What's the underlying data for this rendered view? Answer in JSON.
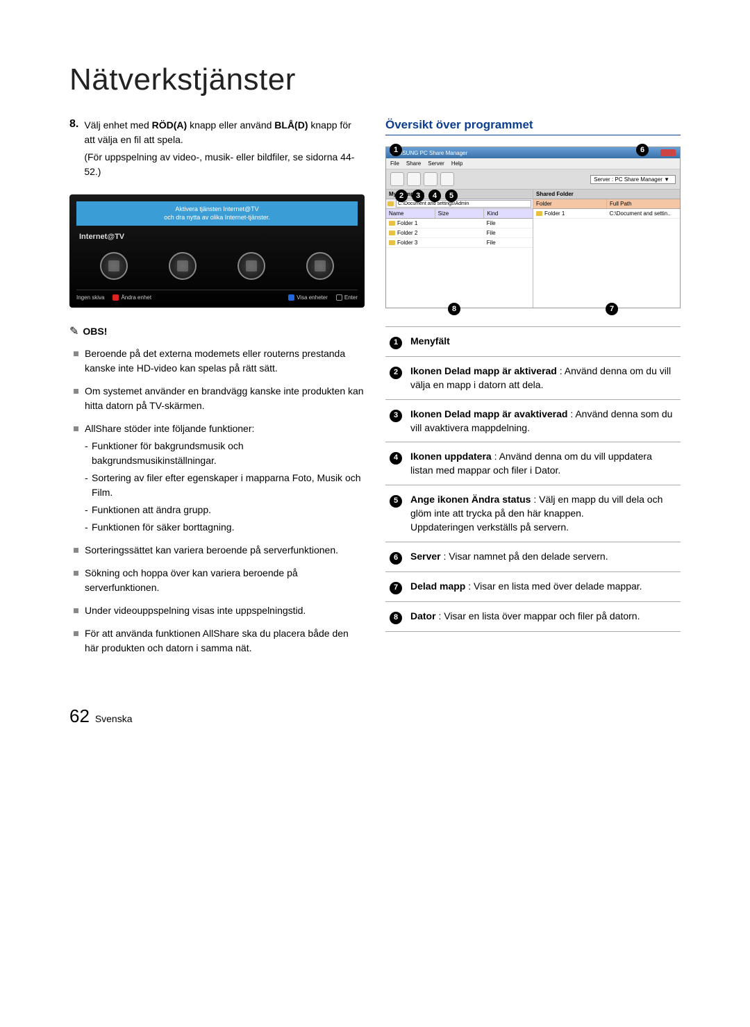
{
  "page": {
    "title": "Nätverkstjänster",
    "number": "62",
    "language": "Svenska"
  },
  "step8": {
    "num": "8.",
    "pre": "Välj enhet med ",
    "red": "RÖD(A)",
    "mid": " knapp eller använd ",
    "blue": "BLÅ(D)",
    "post1": " knapp för att välja en fil att spela.",
    "post2": "(För uppspelning av video-, musik- eller bildfiler, se sidorna 44-52.)"
  },
  "tv": {
    "banner_l1": "Aktivera tjänsten Internet@TV",
    "banner_l2": "och dra nytta av olika Internet-tjänster.",
    "label": "Internet@TV",
    "footer": {
      "no_disc": "Ingen skiva",
      "change_device": "Ändra enhet",
      "view_devices": "Visa enheter",
      "enter": "Enter"
    }
  },
  "obs": {
    "label": "OBS!"
  },
  "bullets": [
    {
      "text": "Beroende på det externa modemets eller routerns prestanda kanske inte HD-video kan spelas på rätt sätt."
    },
    {
      "text": "Om systemet använder en brandvägg kanske inte produkten kan hitta datorn på TV-skärmen."
    },
    {
      "text": "AllShare stöder inte följande funktioner:",
      "subs": [
        "Funktioner för bakgrundsmusik och bakgrundsmusikinställningar.",
        "Sortering av filer efter egenskaper i mapparna Foto, Musik och Film.",
        "Funktionen att ändra grupp.",
        "Funktionen för säker borttagning."
      ]
    },
    {
      "text": "Sorteringssättet kan variera beroende på serverfunktionen."
    },
    {
      "text": "Sökning och hoppa över kan variera beroende på serverfunktionen."
    },
    {
      "text": "Under videouppspelning visas inte uppspelningstid."
    },
    {
      "text": "För att använda funktionen AllShare ska du placera både den här produkten och datorn i samma nät."
    }
  ],
  "overview": {
    "heading": "Översikt över programmet"
  },
  "program": {
    "title": "SAMSUNG PC Share Manager",
    "menus": [
      "File",
      "Share",
      "Server",
      "Help"
    ],
    "server_label": "Server : PC Share Manager ▼",
    "left": {
      "header": "My Computer",
      "path": "C:\\Document and settings\\Admin",
      "cols": [
        "Name",
        "Size",
        "Kind"
      ],
      "rows": [
        {
          "name": "Folder 1",
          "size": "",
          "kind": "File"
        },
        {
          "name": "Folder 2",
          "size": "",
          "kind": "File"
        },
        {
          "name": "Folder 3",
          "size": "",
          "kind": "File"
        }
      ]
    },
    "right": {
      "header": "Shared Folder",
      "cols": [
        "Folder",
        "Full Path"
      ],
      "rows": [
        {
          "folder": "Folder 1",
          "path": "C:\\Document and settin.."
        }
      ]
    }
  },
  "legend": [
    {
      "n": "1",
      "bold": "Menyfält",
      "text": ""
    },
    {
      "n": "2",
      "bold": "Ikonen Delad mapp är aktiverad",
      "text": " : Använd denna om du vill välja en mapp i datorn att dela."
    },
    {
      "n": "3",
      "bold": "Ikonen Delad mapp är avaktiverad",
      "text": " : Använd denna som du vill avaktivera mappdelning."
    },
    {
      "n": "4",
      "bold": "Ikonen uppdatera",
      "text": " : Använd denna om du vill uppdatera listan med mappar och filer i Dator."
    },
    {
      "n": "5",
      "bold": "Ange ikonen Ändra status",
      "text": " : Välj en mapp du vill dela och glöm inte att trycka på den här knappen.",
      "extra": "Uppdateringen verkställs på servern."
    },
    {
      "n": "6",
      "bold": "Server",
      "text": " : Visar namnet på den delade servern."
    },
    {
      "n": "7",
      "bold": "Delad mapp",
      "text": " : Visar en lista med över delade mappar."
    },
    {
      "n": "8",
      "bold": "Dator",
      "text": " : Visar en lista över mappar och filer på datorn."
    }
  ]
}
